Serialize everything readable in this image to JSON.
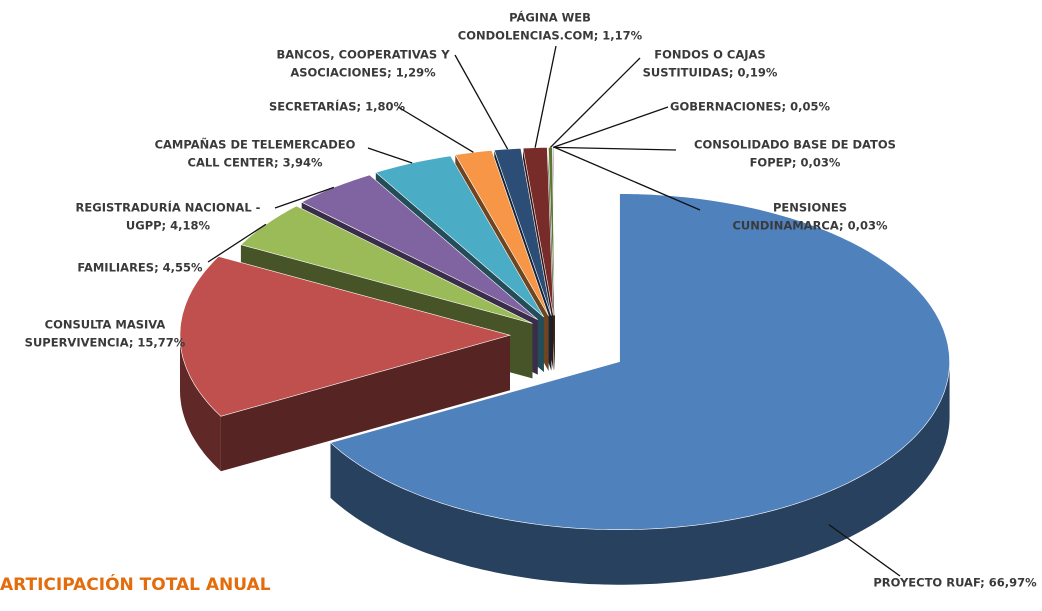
{
  "chart_data": {
    "type": "pie",
    "title": "ARTICIPACIÓN TOTAL ANUAL",
    "values": [
      66.97,
      15.77,
      4.55,
      4.18,
      3.94,
      1.8,
      1.29,
      1.17,
      0.19,
      0.05,
      0.03,
      0.03
    ],
    "value_labels": [
      [
        "PROYECTO RUAF; 66,97%"
      ],
      [
        "CONSULTA MASIVA",
        "SUPERVIVENCIA; 15,77%"
      ],
      [
        "FAMILIARES; 4,55%"
      ],
      [
        "REGISTRADURÍA NACIONAL -",
        "UGPP; 4,18%"
      ],
      [
        "CAMPAÑAS DE TELEMERCADEO",
        "CALL CENTER; 3,94%"
      ],
      [
        "SECRETARÍAS; 1,80%"
      ],
      [
        "BANCOS, COOPERATIVAS Y",
        "ASOCIACIONES; 1,29%"
      ],
      [
        "PÁGINA WEB",
        "CONDOLENCIAS.COM; 1,17%"
      ],
      [
        "FONDOS O CAJAS",
        "SUSTITUIDAS; 0,19%"
      ],
      [
        "GOBERNACIONES; 0,05%"
      ],
      [
        "CONSOLIDADO BASE DE DATOS",
        "FOPEP; 0,03%"
      ],
      [
        "PENSIONES",
        "CUNDINAMARCA; 0,03%"
      ]
    ],
    "colors": [
      "#4f81bd",
      "#c0504d",
      "#9bbb59",
      "#8064a2",
      "#4bacc6",
      "#f79646",
      "#2c4d75",
      "#772c2a",
      "#5f7530",
      "#4d3b62",
      "#276a7c",
      "#b65708"
    ]
  }
}
